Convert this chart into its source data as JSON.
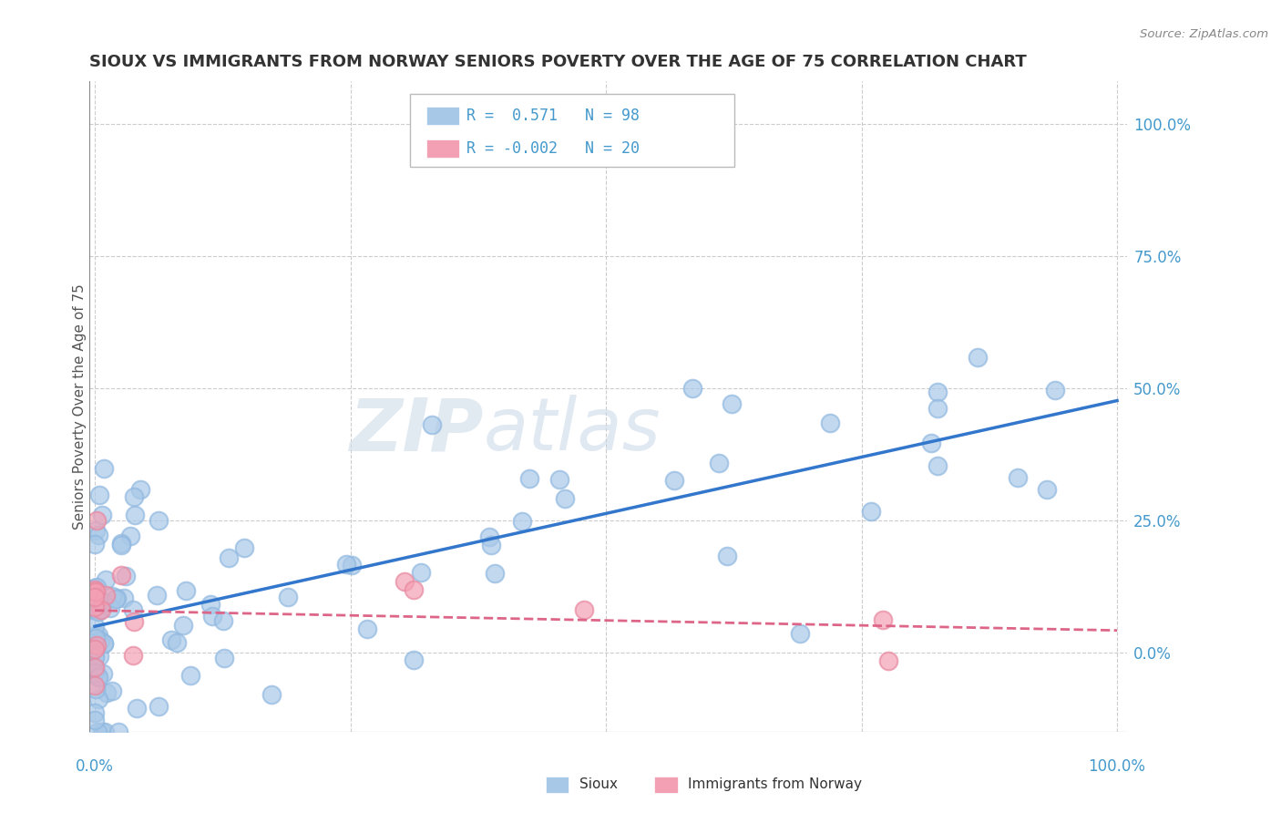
{
  "title": "SIOUX VS IMMIGRANTS FROM NORWAY SENIORS POVERTY OVER THE AGE OF 75 CORRELATION CHART",
  "source": "Source: ZipAtlas.com",
  "ylabel": "Seniors Poverty Over the Age of 75",
  "ytick_vals": [
    0,
    25,
    50,
    75,
    100
  ],
  "legend_sioux_r": "0.571",
  "legend_sioux_n": "98",
  "legend_norway_r": "-0.002",
  "legend_norway_n": "20",
  "sioux_color": "#a8c8e8",
  "sioux_edge_color": "#90b8e0",
  "norway_color": "#f4a0b4",
  "norway_edge_color": "#e888a0",
  "sioux_line_color": "#3377cc",
  "norway_line_color": "#dd6688",
  "watermark_zip": "ZIP",
  "watermark_atlas": "atlas",
  "background_color": "#ffffff",
  "title_color": "#333333",
  "source_color": "#888888",
  "axis_label_color": "#4499cc",
  "ylabel_color": "#555555"
}
